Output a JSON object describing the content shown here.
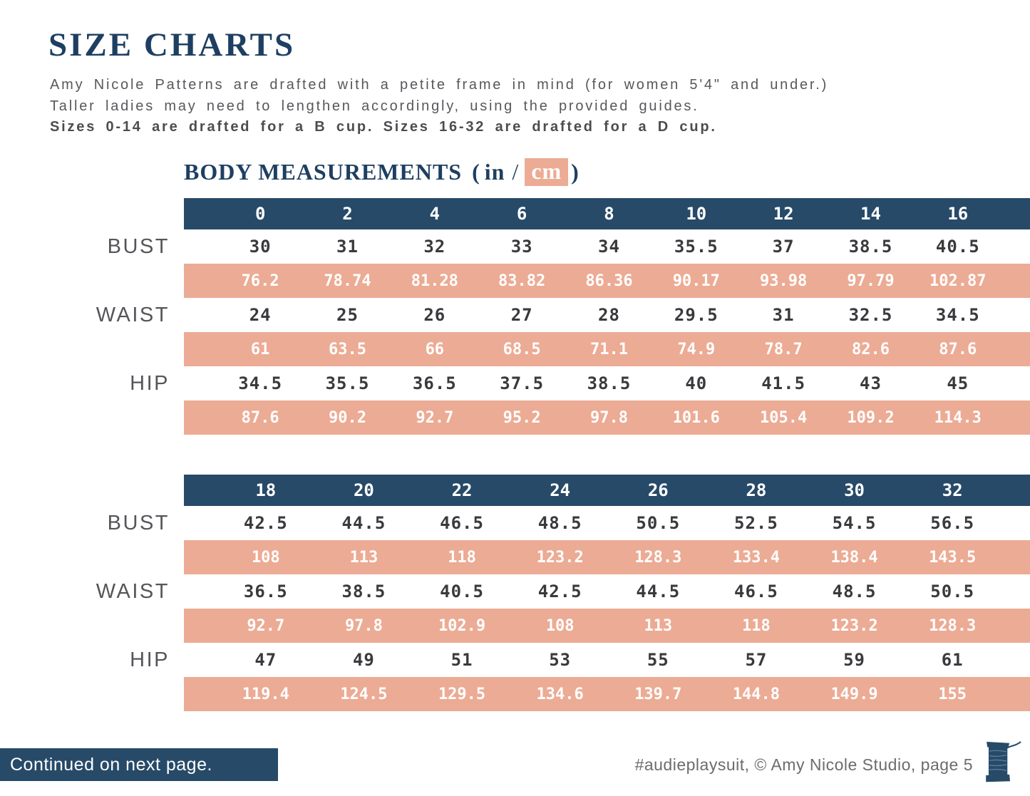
{
  "page": {
    "title": "SIZE CHARTS",
    "intro_lines": [
      "Amy Nicole Patterns are drafted with a petite frame in mind (for women 5'4\" and under.)",
      "Taller ladies may need to lengthen accordingly, using the provided guides.",
      "Sizes 0-14 are drafted for a B cup. Sizes 16-32 are drafted for a D cup."
    ]
  },
  "heading": {
    "main": "BODY MEASUREMENTS",
    "open": "(",
    "in": "in",
    "slash": "/",
    "cm": "cm",
    "close": ")"
  },
  "tables": [
    {
      "sizes": [
        "0",
        "2",
        "4",
        "6",
        "8",
        "10",
        "12",
        "14",
        "16"
      ],
      "rows": [
        {
          "label": "BUST",
          "in": [
            "30",
            "31",
            "32",
            "33",
            "34",
            "35.5",
            "37",
            "38.5",
            "40.5"
          ],
          "cm": [
            "76.2",
            "78.74",
            "81.28",
            "83.82",
            "86.36",
            "90.17",
            "93.98",
            "97.79",
            "102.87"
          ]
        },
        {
          "label": "WAIST",
          "in": [
            "24",
            "25",
            "26",
            "27",
            "28",
            "29.5",
            "31",
            "32.5",
            "34.5"
          ],
          "cm": [
            "61",
            "63.5",
            "66",
            "68.5",
            "71.1",
            "74.9",
            "78.7",
            "82.6",
            "87.6"
          ]
        },
        {
          "label": "HIP",
          "in": [
            "34.5",
            "35.5",
            "36.5",
            "37.5",
            "38.5",
            "40",
            "41.5",
            "43",
            "45"
          ],
          "cm": [
            "87.6",
            "90.2",
            "92.7",
            "95.2",
            "97.8",
            "101.6",
            "105.4",
            "109.2",
            "114.3"
          ]
        }
      ]
    },
    {
      "sizes": [
        "18",
        "20",
        "22",
        "24",
        "26",
        "28",
        "30",
        "32"
      ],
      "rows": [
        {
          "label": "BUST",
          "in": [
            "42.5",
            "44.5",
            "46.5",
            "48.5",
            "50.5",
            "52.5",
            "54.5",
            "56.5"
          ],
          "cm": [
            "108",
            "113",
            "118",
            "123.2",
            "128.3",
            "133.4",
            "138.4",
            "143.5"
          ]
        },
        {
          "label": "WAIST",
          "in": [
            "36.5",
            "38.5",
            "40.5",
            "42.5",
            "44.5",
            "46.5",
            "48.5",
            "50.5"
          ],
          "cm": [
            "92.7",
            "97.8",
            "102.9",
            "108",
            "113",
            "118",
            "123.2",
            "128.3"
          ]
        },
        {
          "label": "HIP",
          "in": [
            "47",
            "49",
            "51",
            "53",
            "55",
            "57",
            "59",
            "61"
          ],
          "cm": [
            "119.4",
            "124.5",
            "129.5",
            "134.6",
            "139.7",
            "144.8",
            "149.9",
            "155"
          ]
        }
      ]
    }
  ],
  "footer": {
    "continued": "Continued on next page.",
    "credit": "#audieplaysuit, © Amy Nicole Studio, page 5",
    "icon": "thread-spool-icon"
  },
  "colors": {
    "navy": "#274a68",
    "navy-dark": "#1e3f61",
    "salmon": "#ecab94",
    "gray-text": "#57585c",
    "num-dark": "#3a3a3e"
  }
}
